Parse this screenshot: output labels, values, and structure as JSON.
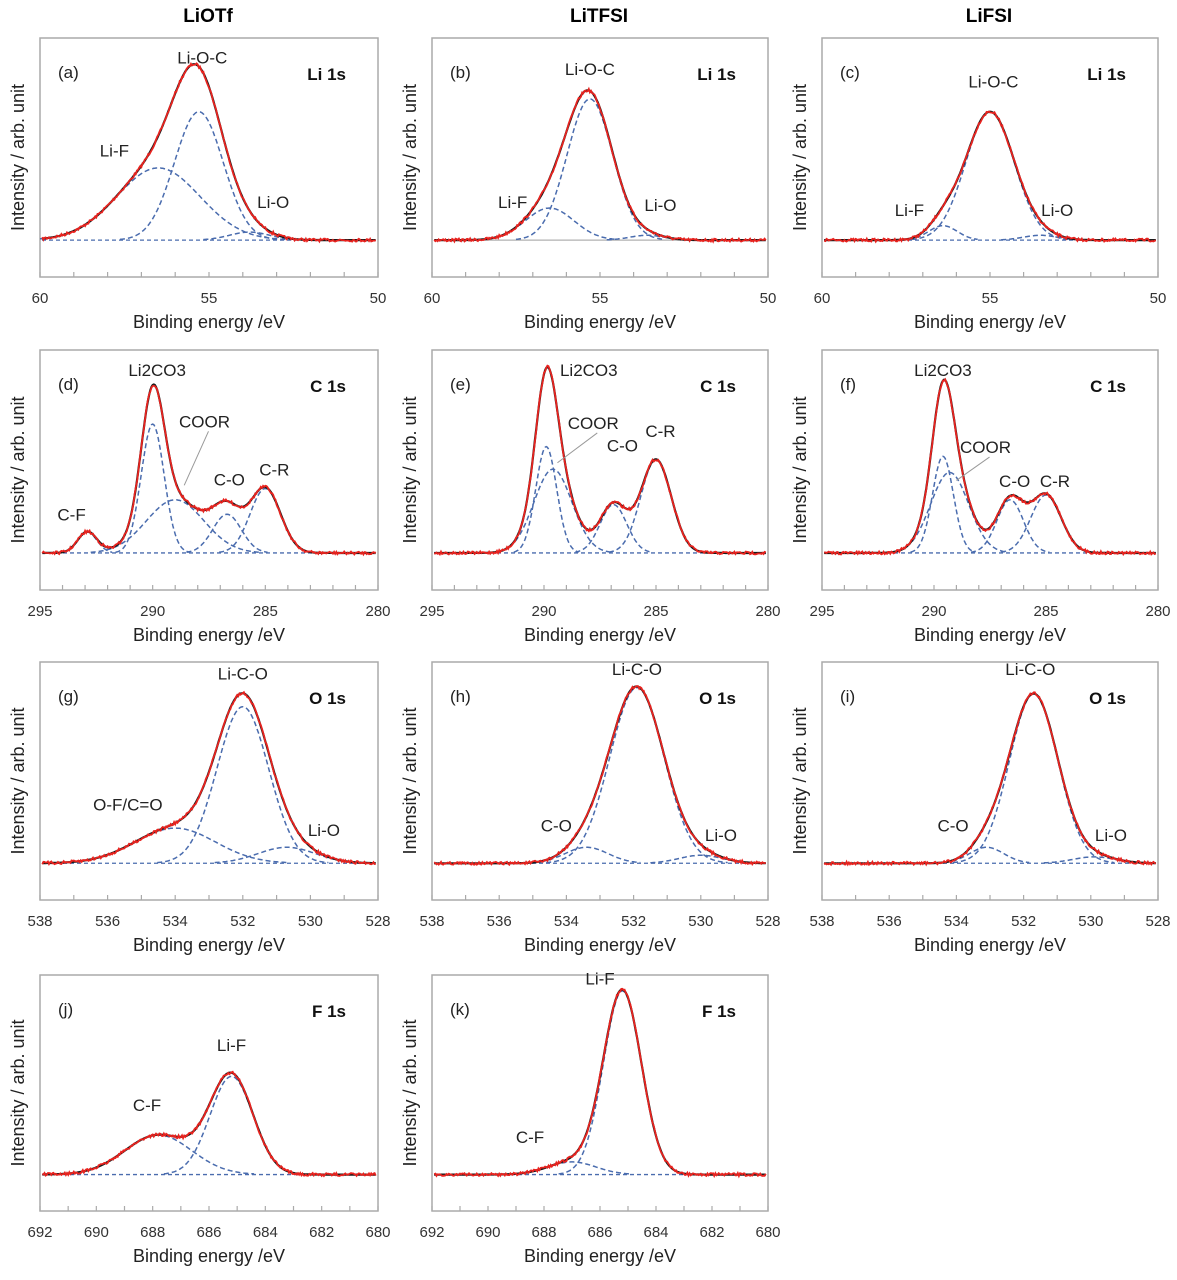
{
  "column_titles": [
    "LiOTf",
    "LiTFSI",
    "LiFSI"
  ],
  "chart_data": [
    {
      "type": "line",
      "panel": "(a)",
      "core_level": "Li 1s",
      "column": "LiOTf",
      "xlabel": "Binding energy /eV",
      "ylabel": "Intensity / arb. unit",
      "xlim": [
        60,
        50
      ],
      "xticks": [
        60,
        55,
        50
      ],
      "ylim": [
        -0.23,
        1.26
      ],
      "components": [
        {
          "name": "Li-O-C",
          "center": 55.3,
          "height": 0.8,
          "fwhm": 1.7
        },
        {
          "name": "Li-F",
          "center": 56.5,
          "height": 0.45,
          "fwhm": 2.9
        },
        {
          "name": "Li-O",
          "center": 53.8,
          "height": 0.05,
          "fwhm": 1.4
        }
      ],
      "annotations": [
        {
          "text": "Li-O-C",
          "x": 55.2,
          "y": 1.1
        },
        {
          "text": "Li-F",
          "x": 57.8,
          "y": 0.52
        },
        {
          "text": "Li-O",
          "x": 53.1,
          "y": 0.2
        }
      ]
    },
    {
      "type": "line",
      "panel": "(b)",
      "core_level": "Li 1s",
      "column": "LiTFSI",
      "xlabel": "Binding energy /eV",
      "ylabel": "Intensity / arb. unit",
      "xlim": [
        60,
        50
      ],
      "xticks": [
        60,
        55,
        50
      ],
      "ylim": [
        -0.23,
        1.26
      ],
      "components": [
        {
          "name": "Li-O-C",
          "center": 55.3,
          "height": 0.88,
          "fwhm": 1.6
        },
        {
          "name": "Li-F",
          "center": 56.5,
          "height": 0.2,
          "fwhm": 1.7
        },
        {
          "name": "Li-O",
          "center": 53.6,
          "height": 0.03,
          "fwhm": 1.2
        }
      ],
      "annotations": [
        {
          "text": "Li-O-C",
          "x": 55.3,
          "y": 1.03
        },
        {
          "text": "Li-F",
          "x": 57.6,
          "y": 0.2
        },
        {
          "text": "Li-O",
          "x": 53.2,
          "y": 0.18
        }
      ]
    },
    {
      "type": "line",
      "panel": "(c)",
      "core_level": "Li 1s",
      "column": "LiFSI",
      "xlabel": "Binding energy /eV",
      "ylabel": "Intensity / arb. unit",
      "xlim": [
        60,
        50
      ],
      "xticks": [
        60,
        55,
        50
      ],
      "ylim": [
        -0.23,
        1.26
      ],
      "components": [
        {
          "name": "Li-O-C",
          "center": 55.0,
          "height": 0.8,
          "fwhm": 1.7
        },
        {
          "name": "Li-F",
          "center": 56.4,
          "height": 0.09,
          "fwhm": 1.0
        },
        {
          "name": "Li-O",
          "center": 53.5,
          "height": 0.03,
          "fwhm": 1.2
        }
      ],
      "annotations": [
        {
          "text": "Li-O-C",
          "x": 54.9,
          "y": 0.95
        },
        {
          "text": "Li-F",
          "x": 57.4,
          "y": 0.15
        },
        {
          "text": "Li-O",
          "x": 53.0,
          "y": 0.15
        }
      ]
    },
    {
      "type": "line",
      "panel": "(d)",
      "core_level": "C 1s",
      "column": "LiOTf",
      "xlabel": "Binding energy /eV",
      "ylabel": "Intensity / arb. unit",
      "xlim": [
        295,
        280
      ],
      "xticks": [
        295,
        290,
        285,
        280
      ],
      "ylim": [
        -0.23,
        1.26
      ],
      "components": [
        {
          "name": "Li2CO3",
          "center": 290.0,
          "height": 0.8,
          "fwhm": 1.2
        },
        {
          "name": "COOR",
          "center": 289.0,
          "height": 0.33,
          "fwhm": 3.0
        },
        {
          "name": "C-O",
          "center": 286.7,
          "height": 0.24,
          "fwhm": 1.5
        },
        {
          "name": "C-R",
          "center": 285.0,
          "height": 0.4,
          "fwhm": 1.6
        },
        {
          "name": "C-F",
          "center": 292.9,
          "height": 0.13,
          "fwhm": 1.0
        }
      ],
      "annotations": [
        {
          "text": "Li2CO3",
          "x": 289.8,
          "y": 1.1,
          "subscript": true
        },
        {
          "text": "COOR",
          "x": 287.7,
          "y": 0.78,
          "leader_to": [
            288.6,
            0.42
          ]
        },
        {
          "text": "C-O",
          "x": 286.6,
          "y": 0.42
        },
        {
          "text": "C-R",
          "x": 284.6,
          "y": 0.48
        },
        {
          "text": "C-F",
          "x": 293.6,
          "y": 0.2
        }
      ]
    },
    {
      "type": "line",
      "panel": "(e)",
      "core_level": "C 1s",
      "column": "LiTFSI",
      "xlabel": "Binding energy /eV",
      "ylabel": "Intensity / arb. unit",
      "xlim": [
        295,
        280
      ],
      "xticks": [
        295,
        290,
        285,
        280
      ],
      "ylim": [
        -0.23,
        1.26
      ],
      "components": [
        {
          "name": "Li2CO3",
          "center": 289.9,
          "height": 0.66,
          "fwhm": 1.1
        },
        {
          "name": "COOR",
          "center": 289.6,
          "height": 0.52,
          "fwhm": 2.0
        },
        {
          "name": "C-O",
          "center": 286.9,
          "height": 0.3,
          "fwhm": 1.4
        },
        {
          "name": "C-R",
          "center": 285.0,
          "height": 0.58,
          "fwhm": 1.6
        }
      ],
      "annotations": [
        {
          "text": "Li2CO3",
          "x": 288.0,
          "y": 1.1,
          "subscript": true
        },
        {
          "text": "COOR",
          "x": 287.8,
          "y": 0.77,
          "leader_to": [
            289.4,
            0.56
          ]
        },
        {
          "text": "C-O",
          "x": 286.5,
          "y": 0.63
        },
        {
          "text": "C-R",
          "x": 284.8,
          "y": 0.72
        }
      ]
    },
    {
      "type": "line",
      "panel": "(f)",
      "core_level": "C 1s",
      "column": "LiFSI",
      "xlabel": "Binding energy /eV",
      "ylabel": "Intensity / arb. unit",
      "xlim": [
        295,
        280
      ],
      "xticks": [
        295,
        290,
        285,
        280
      ],
      "ylim": [
        -0.23,
        1.26
      ],
      "components": [
        {
          "name": "Li2CO3",
          "center": 289.6,
          "height": 0.6,
          "fwhm": 1.1
        },
        {
          "name": "COOR",
          "center": 289.3,
          "height": 0.5,
          "fwhm": 2.0
        },
        {
          "name": "C-O",
          "center": 286.6,
          "height": 0.33,
          "fwhm": 1.4
        },
        {
          "name": "C-R",
          "center": 285.0,
          "height": 0.36,
          "fwhm": 1.6
        }
      ],
      "annotations": [
        {
          "text": "Li2CO3",
          "x": 289.6,
          "y": 1.1,
          "subscript": true
        },
        {
          "text": "COOR",
          "x": 287.7,
          "y": 0.62,
          "leader_to": [
            289.0,
            0.45
          ]
        },
        {
          "text": "C-O",
          "x": 286.4,
          "y": 0.41
        },
        {
          "text": "C-R",
          "x": 284.6,
          "y": 0.41
        }
      ]
    },
    {
      "type": "line",
      "panel": "(g)",
      "core_level": "O 1s",
      "column": "LiOTf",
      "xlabel": "Binding energy /eV",
      "ylabel": "Intensity / arb. unit",
      "xlim": [
        538,
        528
      ],
      "xticks": [
        538,
        536,
        534,
        532,
        530,
        528
      ],
      "ylim": [
        -0.23,
        1.26
      ],
      "components": [
        {
          "name": "Li-C-O",
          "center": 532.0,
          "height": 0.98,
          "fwhm": 1.8
        },
        {
          "name": "O-F/C=O",
          "center": 534.0,
          "height": 0.22,
          "fwhm": 2.8
        },
        {
          "name": "Li-O",
          "center": 530.7,
          "height": 0.1,
          "fwhm": 2.0
        }
      ],
      "annotations": [
        {
          "text": "Li-C-O",
          "x": 532.0,
          "y": 1.15
        },
        {
          "text": "O-F/C=O",
          "x": 535.4,
          "y": 0.33
        },
        {
          "text": "Li-O",
          "x": 529.6,
          "y": 0.17
        }
      ]
    },
    {
      "type": "line",
      "panel": "(h)",
      "core_level": "O 1s",
      "column": "LiTFSI",
      "xlabel": "Binding energy /eV",
      "ylabel": "Intensity / arb. unit",
      "xlim": [
        538,
        528
      ],
      "xticks": [
        538,
        536,
        534,
        532,
        530,
        528
      ],
      "ylim": [
        -0.23,
        1.26
      ],
      "components": [
        {
          "name": "Li-C-O",
          "center": 531.9,
          "height": 1.1,
          "fwhm": 1.9
        },
        {
          "name": "C-O",
          "center": 533.4,
          "height": 0.1,
          "fwhm": 1.5
        },
        {
          "name": "Li-O",
          "center": 530.0,
          "height": 0.05,
          "fwhm": 1.5
        }
      ],
      "annotations": [
        {
          "text": "Li-C-O",
          "x": 531.9,
          "y": 1.18
        },
        {
          "text": "C-O",
          "x": 534.3,
          "y": 0.2
        },
        {
          "text": "Li-O",
          "x": 529.4,
          "y": 0.14
        }
      ]
    },
    {
      "type": "line",
      "panel": "(i)",
      "core_level": "O 1s",
      "column": "LiFSI",
      "xlabel": "Binding energy /eV",
      "ylabel": "Intensity / arb. unit",
      "xlim": [
        538,
        528
      ],
      "xticks": [
        538,
        536,
        534,
        532,
        530,
        528
      ],
      "ylim": [
        -0.23,
        1.26
      ],
      "components": [
        {
          "name": "Li-C-O",
          "center": 531.7,
          "height": 1.06,
          "fwhm": 1.7
        },
        {
          "name": "C-O",
          "center": 533.1,
          "height": 0.1,
          "fwhm": 1.2
        },
        {
          "name": "Li-O",
          "center": 529.9,
          "height": 0.04,
          "fwhm": 1.5
        }
      ],
      "annotations": [
        {
          "text": "Li-C-O",
          "x": 531.8,
          "y": 1.18
        },
        {
          "text": "C-O",
          "x": 534.1,
          "y": 0.2
        },
        {
          "text": "Li-O",
          "x": 529.4,
          "y": 0.14
        }
      ]
    },
    {
      "type": "line",
      "panel": "(j)",
      "core_level": "F 1s",
      "column": "LiOTf",
      "xlabel": "Binding energy /eV",
      "ylabel": "Intensity / arb. unit",
      "xlim": [
        692,
        680
      ],
      "xticks": [
        692,
        690,
        688,
        686,
        684,
        682,
        680
      ],
      "ylim": [
        -0.23,
        1.26
      ],
      "components": [
        {
          "name": "Li-F",
          "center": 685.2,
          "height": 0.62,
          "fwhm": 1.8
        },
        {
          "name": "C-F",
          "center": 687.8,
          "height": 0.25,
          "fwhm": 2.8
        }
      ],
      "annotations": [
        {
          "text": "Li-F",
          "x": 685.2,
          "y": 0.78
        },
        {
          "text": "C-F",
          "x": 688.2,
          "y": 0.4
        }
      ]
    },
    {
      "type": "line",
      "panel": "(k)",
      "core_level": "F 1s",
      "column": "LiTFSI",
      "xlabel": "Binding energy /eV",
      "ylabel": "Intensity / arb. unit",
      "xlim": [
        692,
        680
      ],
      "xticks": [
        692,
        690,
        688,
        686,
        684,
        682,
        680
      ],
      "ylim": [
        -0.23,
        1.26
      ],
      "components": [
        {
          "name": "Li-F",
          "center": 685.2,
          "height": 1.16,
          "fwhm": 1.6
        },
        {
          "name": "C-F",
          "center": 687.0,
          "height": 0.08,
          "fwhm": 2.0
        }
      ],
      "annotations": [
        {
          "text": "Li-F",
          "x": 686.0,
          "y": 1.2
        },
        {
          "text": "C-F",
          "x": 688.5,
          "y": 0.2
        }
      ]
    }
  ],
  "colors": {
    "measured": "#1a1a1a",
    "fit": "#e8231f",
    "component": "#4a6cae",
    "frame": "#aaaaaa",
    "background_line": "#b0b0b0"
  }
}
